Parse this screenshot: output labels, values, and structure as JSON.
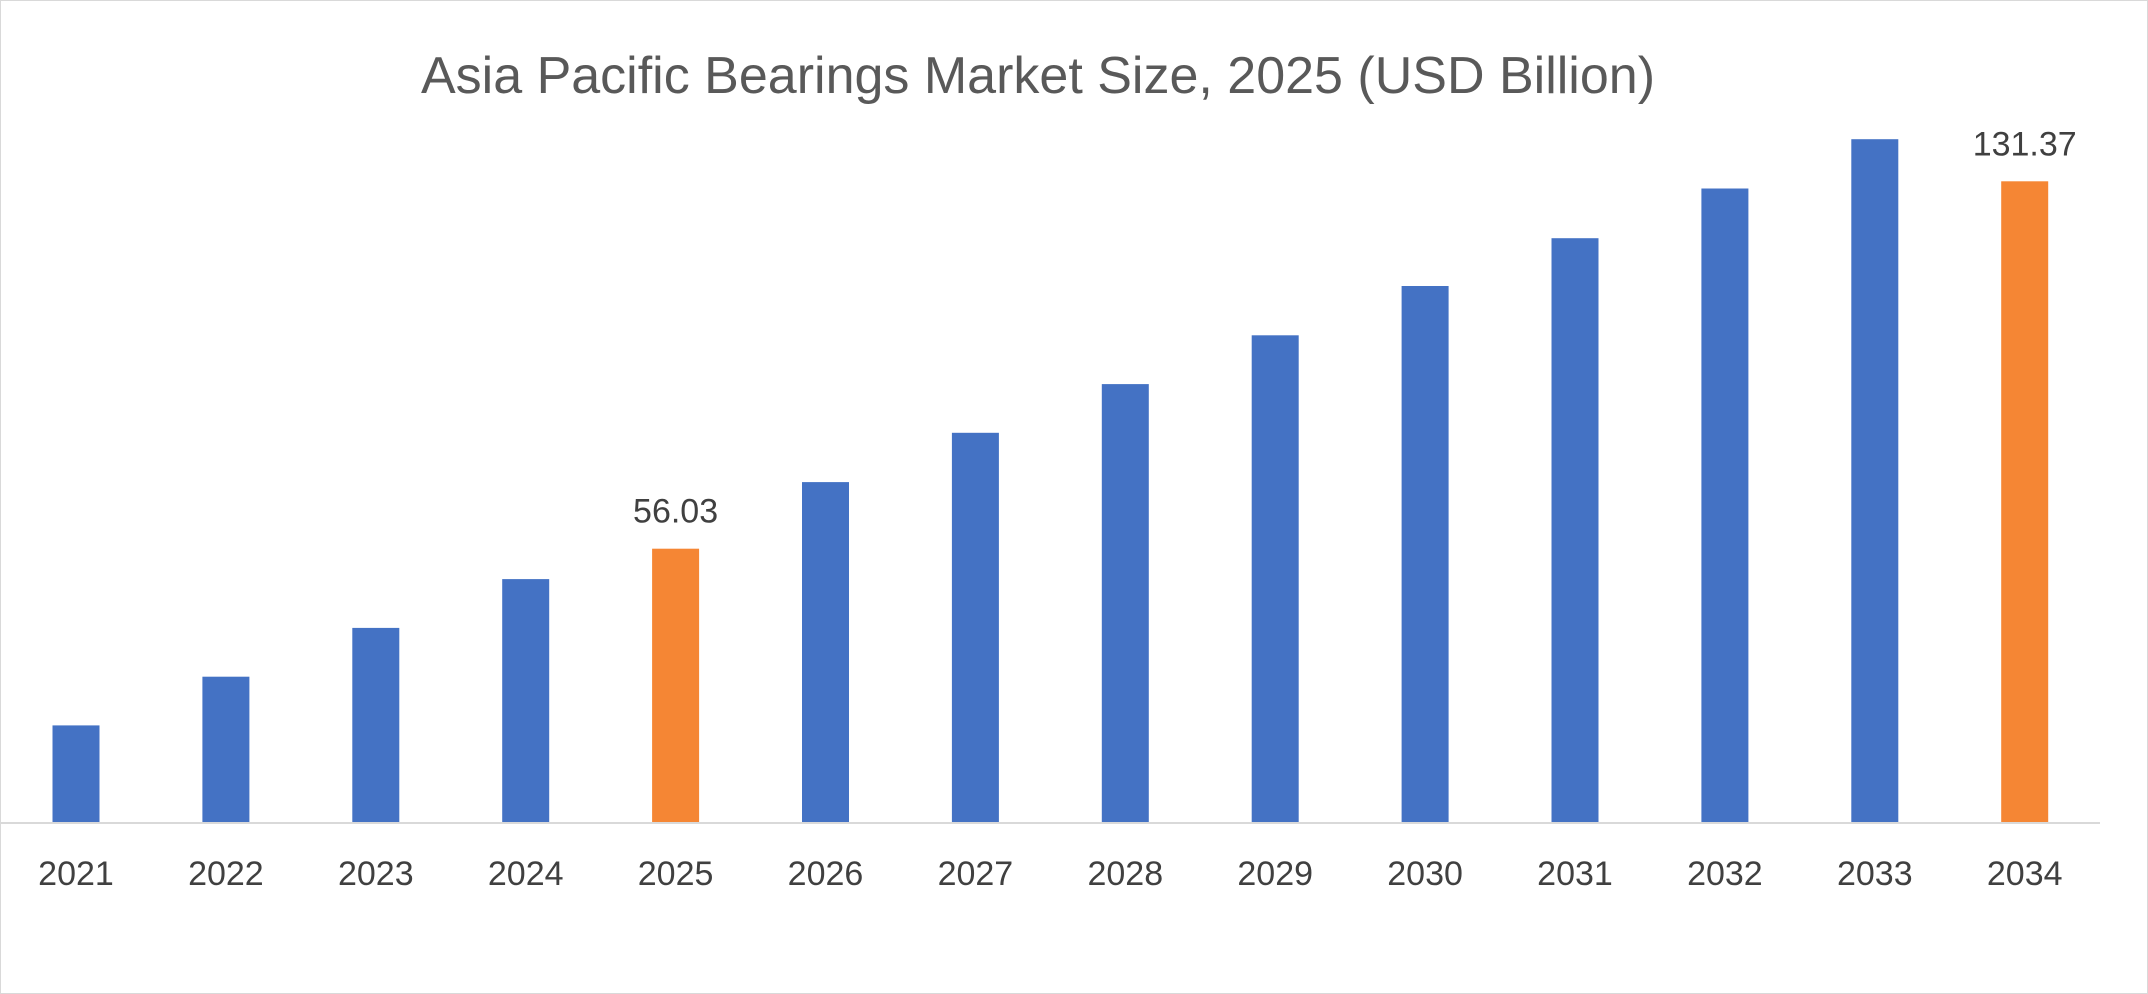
{
  "chart_data": {
    "type": "bar",
    "title": "Asia Pacific Bearings Market Size, 2025 (USD Billion)",
    "xlabel": "",
    "ylabel": "",
    "categories": [
      "2021",
      "2022",
      "2023",
      "2024",
      "2025",
      "2026",
      "2027",
      "2028",
      "2029",
      "2030",
      "2031",
      "2032",
      "2033",
      "2034"
    ],
    "values": [
      19.8,
      29.8,
      39.8,
      49.8,
      56.03,
      69.7,
      79.8,
      89.8,
      99.8,
      109.9,
      119.7,
      129.9,
      140.0,
      131.37
    ],
    "data_labels": [
      "",
      "",
      "",
      "",
      "56.03",
      "",
      "",
      "",
      "",
      "",
      "",
      "",
      "",
      "131.37"
    ],
    "ylim": [
      0,
      150
    ],
    "grid": false,
    "legend": "none",
    "colors": {
      "default": "#4472c4",
      "highlight": "#f58634",
      "axis": "#d9d9d9"
    },
    "highlight_categories": [
      "2025",
      "2034"
    ]
  }
}
